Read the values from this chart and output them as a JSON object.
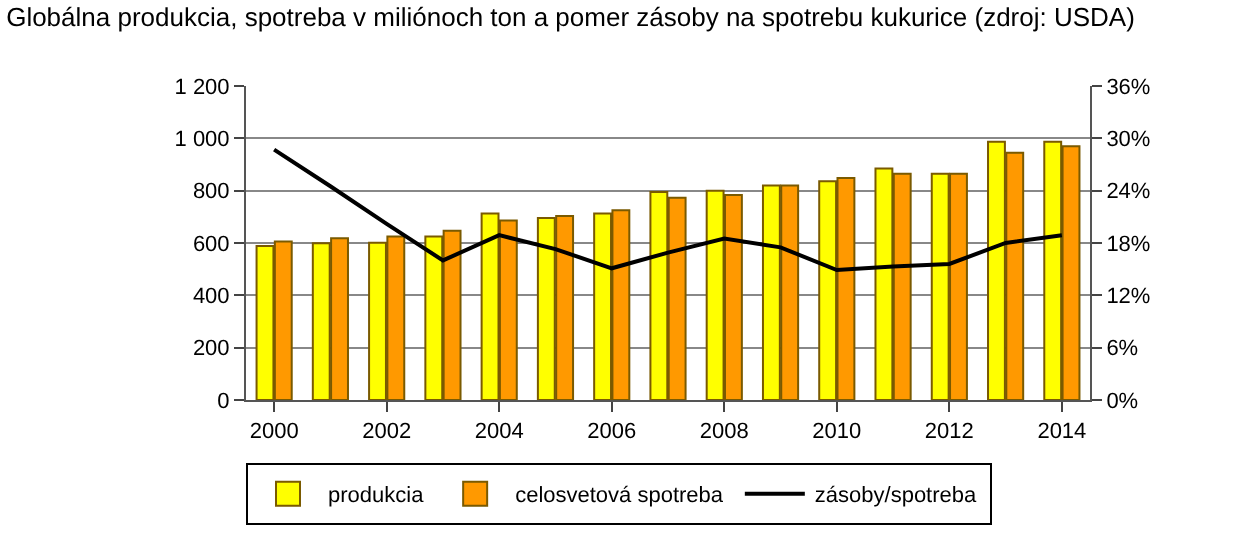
{
  "chart_data": {
    "type": "bar",
    "title": "Globálna produkcia, spotreba v miliónoch ton a pomer zásoby na spotrebu kukurice (zdroj: USDA)",
    "categories": [
      "2000",
      null,
      "2002",
      null,
      "2004",
      null,
      "2006",
      null,
      "2008",
      null,
      "2010",
      null,
      "2012",
      null,
      "2014"
    ],
    "series": [
      {
        "name": "produkcia",
        "color": "#ffff00",
        "values": [
          589,
          599,
          601,
          625,
          713,
          696,
          713,
          795,
          800,
          820,
          836,
          885,
          865,
          987,
          987
        ]
      },
      {
        "name": "celosvetová spotreba",
        "color": "#ff9900",
        "values": [
          606,
          618,
          625,
          647,
          686,
          703,
          725,
          773,
          783,
          820,
          848,
          865,
          865,
          945,
          970
        ]
      },
      {
        "name": "zásoby/spotreba",
        "type": "line",
        "axis": "y2",
        "color": "#000000",
        "values": [
          28.7,
          24.5,
          20.2,
          16.0,
          18.9,
          17.3,
          15.1,
          16.9,
          18.5,
          17.5,
          14.9,
          15.3,
          15.6,
          18.0,
          18.9
        ]
      }
    ],
    "ylim": [
      0,
      1200
    ],
    "yticks": [
      0,
      {
        "value": 200,
        "label": "200"
      },
      {
        "value": 400,
        "label": "400"
      },
      {
        "value": 600,
        "label": "600"
      },
      {
        "value": 800,
        "label": "800"
      },
      {
        "value": 1000,
        "label": "1 000"
      },
      {
        "value": 1200,
        "label": "1 200"
      }
    ],
    "y2lim": [
      0,
      36
    ],
    "y2ticks": [
      {
        "value": 0,
        "label": "0%"
      },
      {
        "value": 6,
        "label": "6%"
      },
      {
        "value": 12,
        "label": "12%"
      },
      {
        "value": 18,
        "label": "18%"
      },
      {
        "value": 24,
        "label": "24%"
      },
      {
        "value": 30,
        "label": "30%"
      },
      {
        "value": 36,
        "label": "36%"
      }
    ],
    "grid": "y",
    "legend": "bottom",
    "line_style": "solid",
    "marker": "none"
  }
}
